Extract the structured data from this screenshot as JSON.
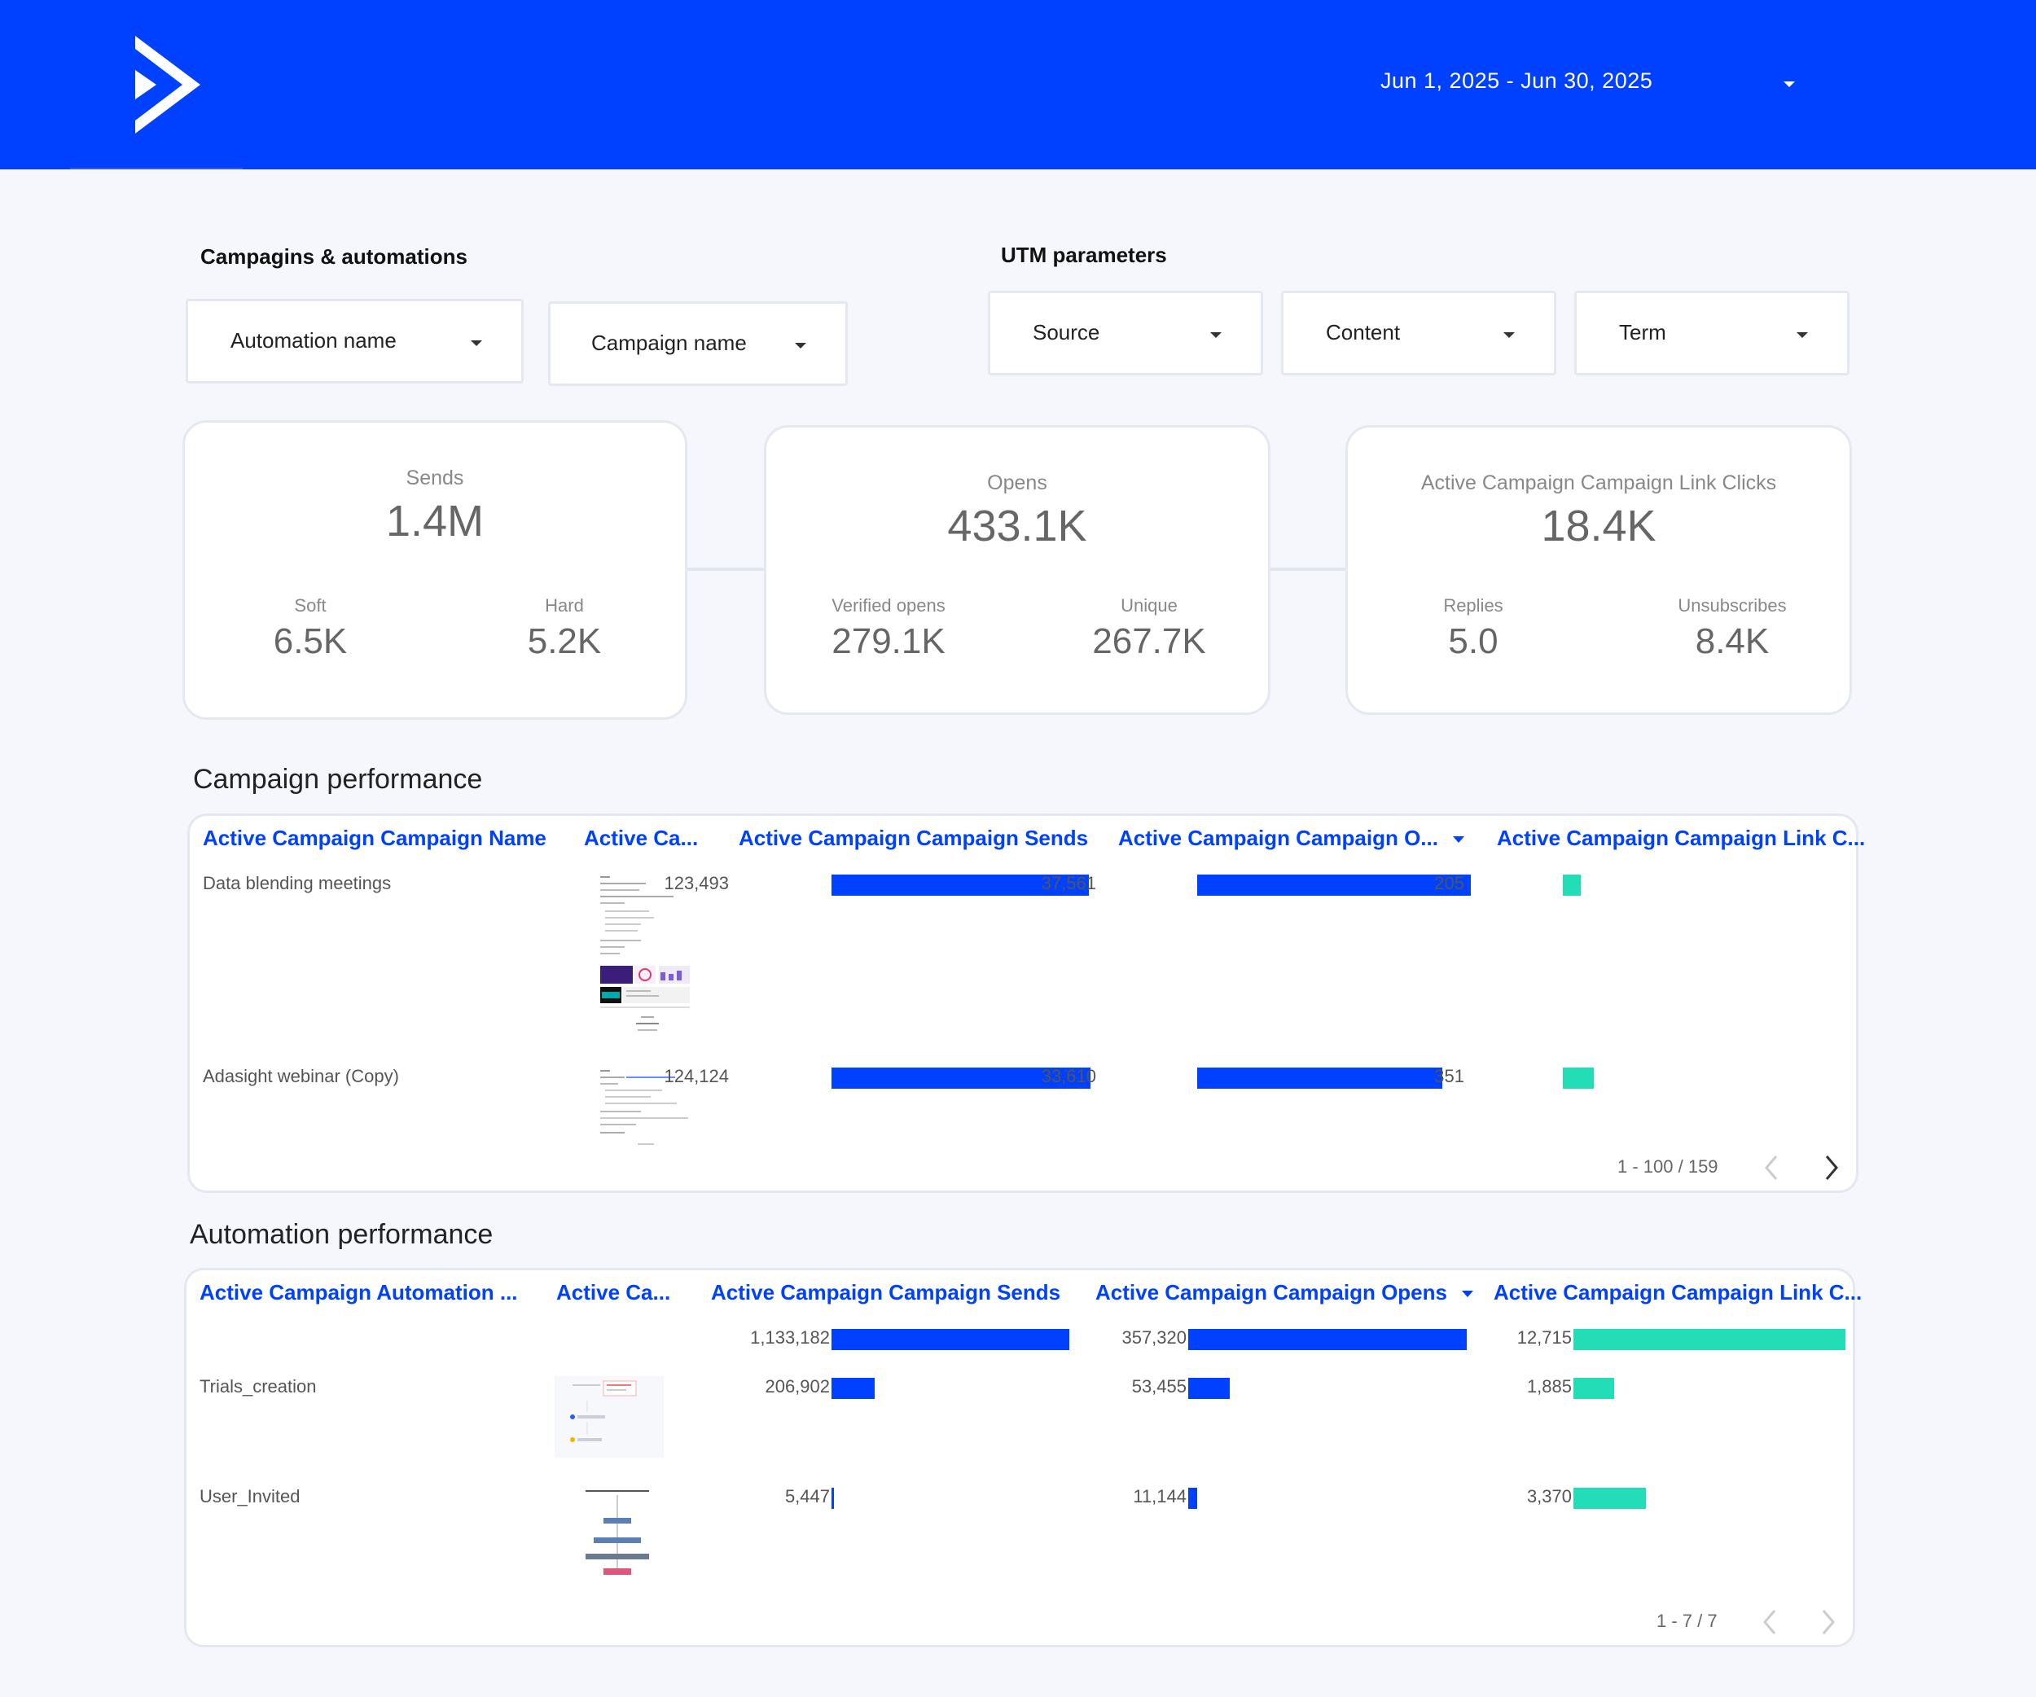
{
  "header": {
    "date_range": "Jun 1, 2025 - Jun 30, 2025",
    "brand_color": "#0040ff"
  },
  "filters": {
    "campaigns_title": "Campagins & automations",
    "automation_name": "Automation name",
    "campaign_name": "Campaign name",
    "utm_title": "UTM parameters",
    "source": "Source",
    "content": "Content",
    "term": "Term"
  },
  "kpis": {
    "sends": {
      "title": "Sends",
      "value": "1.4M",
      "left_title": "Soft",
      "left_value": "6.5K",
      "right_title": "Hard",
      "right_value": "5.2K"
    },
    "opens": {
      "title": "Opens",
      "value": "433.1K",
      "left_title": "Verified opens",
      "left_value": "279.1K",
      "right_title": "Unique",
      "right_value": "267.7K"
    },
    "clicks": {
      "title": "Active Campaign Campaign Link Clicks",
      "value": "18.4K",
      "left_title": "Replies",
      "left_value": "5.0",
      "right_title": "Unsubscribes",
      "right_value": "8.4K"
    }
  },
  "campaign_table": {
    "title": "Campaign performance",
    "headers": [
      "Active Campaign Campaign Name",
      "Active Ca...",
      "Active Campaign Campaign Sends",
      "Active Campaign Campaign O...",
      "Active Campaign Campaign Link C..."
    ],
    "rows": [
      {
        "name": "Data blending meetings",
        "sends": "123,493",
        "sends_v": 123493,
        "opens": "37,561",
        "opens_v": 37561,
        "clicks": "205",
        "clicks_v": 205
      },
      {
        "name": "Adasight webinar (Copy)",
        "sends": "124,124",
        "sends_v": 124124,
        "opens": "33,610",
        "opens_v": 33610,
        "clicks": "351",
        "clicks_v": 351
      }
    ],
    "pager": "1 - 100 / 159",
    "colors": {
      "sends": "#0040ff",
      "opens": "#0040ff",
      "clicks": "#22ddb5"
    }
  },
  "automation_table": {
    "title": "Automation performance",
    "headers": [
      "Active Campaign Automation ...",
      "Active Ca...",
      "Active Campaign Campaign Sends",
      "Active Campaign Campaign Opens",
      "Active Campaign Campaign Link C..."
    ],
    "rows": [
      {
        "name": "",
        "sends": "1,133,182",
        "sends_v": 1133182,
        "opens": "357,320",
        "opens_v": 357320,
        "clicks": "12,715",
        "clicks_v": 12715
      },
      {
        "name": "Trials_creation",
        "sends": "206,902",
        "sends_v": 206902,
        "opens": "53,455",
        "opens_v": 53455,
        "clicks": "1,885",
        "clicks_v": 1885
      },
      {
        "name": "User_Invited",
        "sends": "5,447",
        "sends_v": 5447,
        "opens": "11,144",
        "opens_v": 11144,
        "clicks": "3,370",
        "clicks_v": 3370
      }
    ],
    "pager": "1 - 7 / 7",
    "colors": {
      "sends": "#0040ff",
      "opens": "#0040ff",
      "clicks": "#22ddb5"
    }
  }
}
